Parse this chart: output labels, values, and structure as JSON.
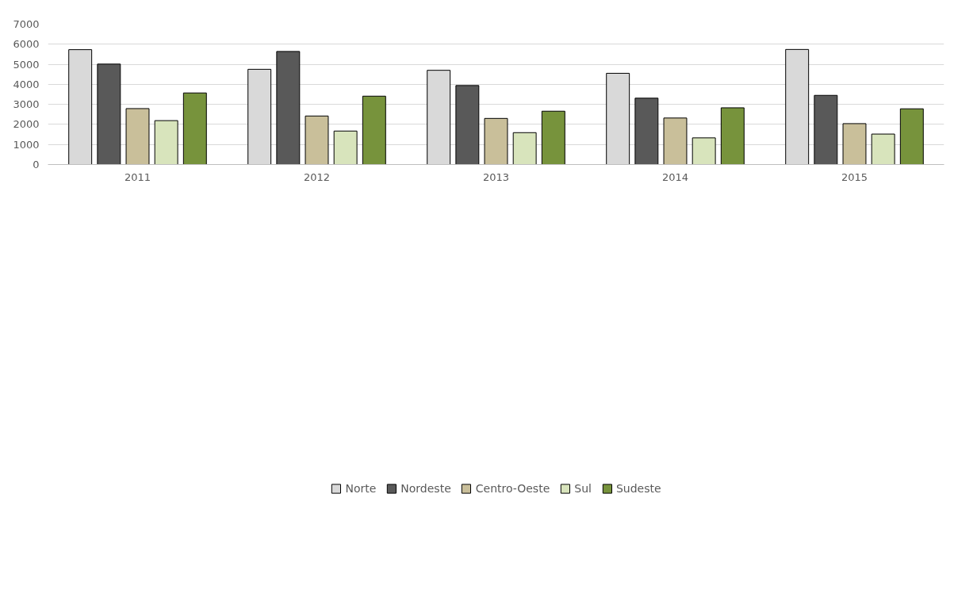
{
  "chart_data": {
    "type": "bar",
    "categories": [
      "2011",
      "2012",
      "2013",
      "2014",
      "2015"
    ],
    "series": [
      {
        "name": "Norte",
        "color": "#d9d9d9",
        "values": [
          5730,
          4750,
          4700,
          4550,
          5740
        ]
      },
      {
        "name": "Nordeste",
        "color": "#595959",
        "values": [
          5010,
          5640,
          3940,
          3310,
          3450
        ]
      },
      {
        "name": "Centro-Oeste",
        "color": "#c9bf9a",
        "values": [
          2790,
          2420,
          2300,
          2320,
          2040
        ]
      },
      {
        "name": "Sul",
        "color": "#d8e4bc",
        "values": [
          2190,
          1670,
          1590,
          1330,
          1520
        ]
      },
      {
        "name": "Sudeste",
        "color": "#77933c",
        "values": [
          3570,
          3410,
          2660,
          2830,
          2780
        ]
      }
    ],
    "ylim": [
      0,
      7000
    ],
    "yticks": [
      0,
      1000,
      2000,
      3000,
      4000,
      5000,
      6000,
      7000
    ],
    "grid": "y",
    "legend": "bottom"
  }
}
